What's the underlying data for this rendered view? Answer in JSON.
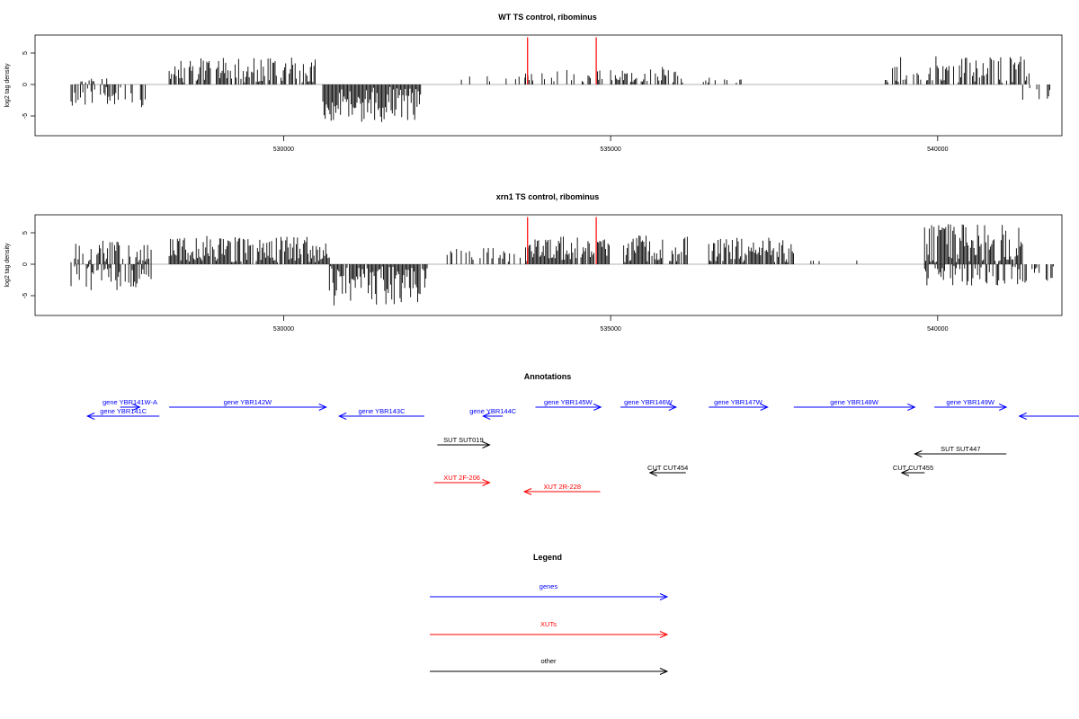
{
  "colors": {
    "genes": "#0000ff",
    "xuts": "#ff0000",
    "other": "#000000",
    "axis": "#000000",
    "baseline": "#b3b3b3",
    "highlight": "#ff0000"
  },
  "chart_data": [
    {
      "type": "bar",
      "title": "WT TS control, ribominus",
      "ylabel": "log2 tag density",
      "xlim": [
        526200,
        541900
      ],
      "ylim": [
        -8,
        8
      ],
      "xticks": [
        530000,
        535000,
        540000
      ],
      "xtick_labels": [
        "530000",
        "535000",
        "540000"
      ],
      "yticks": [
        5,
        0,
        -5
      ],
      "ytick_labels": [
        "5",
        "0",
        "-5"
      ],
      "highlight_positions": [
        533730,
        534780
      ],
      "highlight_value": 7.5,
      "segments": [
        {
          "start": 526750,
          "end": 527900,
          "mean": -2.0,
          "amp": 1.6,
          "density": 0.45,
          "seed": 11
        },
        {
          "start": 526900,
          "end": 527300,
          "mean": 0.6,
          "amp": 0.5,
          "density": 0.3,
          "seed": 12
        },
        {
          "start": 528250,
          "end": 530500,
          "mean": 2.3,
          "amp": 2.0,
          "density": 0.8,
          "seed": 13
        },
        {
          "start": 530600,
          "end": 532100,
          "mean": -3.0,
          "amp": 3.0,
          "density": 0.95,
          "seed": 14
        },
        {
          "start": 532700,
          "end": 533700,
          "mean": 1.2,
          "amp": 0.8,
          "density": 0.12,
          "seed": 15
        },
        {
          "start": 533700,
          "end": 534900,
          "mean": 1.2,
          "amp": 1.2,
          "density": 0.3,
          "seed": 16
        },
        {
          "start": 535000,
          "end": 536100,
          "mean": 1.3,
          "amp": 1.5,
          "density": 0.6,
          "seed": 17
        },
        {
          "start": 536400,
          "end": 537000,
          "mean": 0.6,
          "amp": 0.6,
          "density": 0.15,
          "seed": 18
        },
        {
          "start": 539200,
          "end": 541400,
          "mean": 2.0,
          "amp": 2.5,
          "density": 0.55,
          "seed": 19
        },
        {
          "start": 541300,
          "end": 541800,
          "mean": -1.2,
          "amp": 1.5,
          "density": 0.3,
          "seed": 20
        }
      ]
    },
    {
      "type": "bar",
      "title": "xrn1 TS control, ribominus",
      "ylabel": "log2 tag density",
      "xlim": [
        526200,
        541900
      ],
      "ylim": [
        -8,
        8
      ],
      "xticks": [
        530000,
        535000,
        540000
      ],
      "xtick_labels": [
        "530000",
        "535000",
        "540000"
      ],
      "yticks": [
        5,
        0,
        -5
      ],
      "ytick_labels": [
        "5",
        "0",
        "-5"
      ],
      "highlight_positions": [
        533730,
        534780
      ],
      "highlight_value": 7.5,
      "segments": [
        {
          "start": 526750,
          "end": 528000,
          "mean": 1.8,
          "amp": 2.0,
          "density": 0.55,
          "seed": 31
        },
        {
          "start": 526750,
          "end": 528000,
          "mean": -2.2,
          "amp": 2.0,
          "density": 0.55,
          "seed": 32
        },
        {
          "start": 528250,
          "end": 530700,
          "mean": 2.3,
          "amp": 2.2,
          "density": 0.9,
          "seed": 33
        },
        {
          "start": 530700,
          "end": 532200,
          "mean": -3.2,
          "amp": 3.5,
          "density": 0.98,
          "seed": 34
        },
        {
          "start": 532500,
          "end": 533700,
          "mean": 1.6,
          "amp": 1.2,
          "density": 0.45,
          "seed": 35
        },
        {
          "start": 533700,
          "end": 535000,
          "mean": 2.5,
          "amp": 2.0,
          "density": 0.9,
          "seed": 36
        },
        {
          "start": 535200,
          "end": 536200,
          "mean": 2.4,
          "amp": 2.2,
          "density": 0.85,
          "seed": 37
        },
        {
          "start": 536500,
          "end": 537800,
          "mean": 2.3,
          "amp": 2.0,
          "density": 0.85,
          "seed": 38
        },
        {
          "start": 537900,
          "end": 539300,
          "mean": 0.5,
          "amp": 0.4,
          "density": 0.06,
          "seed": 39
        },
        {
          "start": 539800,
          "end": 541300,
          "mean": 3.0,
          "amp": 3.5,
          "density": 0.95,
          "seed": 40
        },
        {
          "start": 539800,
          "end": 541300,
          "mean": -1.8,
          "amp": 1.6,
          "density": 0.5,
          "seed": 41
        },
        {
          "start": 541300,
          "end": 541800,
          "mean": -1.5,
          "amp": 1.5,
          "density": 0.45,
          "seed": 42
        }
      ]
    }
  ],
  "annotations": {
    "title": "Annotations",
    "items": [
      {
        "label": "gene YBR141W-A",
        "type": "genes",
        "start": 527500,
        "end": 527800,
        "dir": "+",
        "row": 0
      },
      {
        "label": "gene YBR141C",
        "type": "genes",
        "start": 527000,
        "end": 528100,
        "dir": "-",
        "row": 1
      },
      {
        "label": "gene YBR142W",
        "type": "genes",
        "start": 528250,
        "end": 530650,
        "dir": "+",
        "row": 0
      },
      {
        "label": "gene YBR143C",
        "type": "genes",
        "start": 530850,
        "end": 532150,
        "dir": "-",
        "row": 1
      },
      {
        "label": "gene YBR144C",
        "type": "genes",
        "start": 533050,
        "end": 533350,
        "dir": "-",
        "row": 1
      },
      {
        "label": "gene YBR145W",
        "type": "genes",
        "start": 533850,
        "end": 534850,
        "dir": "+",
        "row": 0
      },
      {
        "label": "gene YBR146W",
        "type": "genes",
        "start": 535150,
        "end": 536000,
        "dir": "+",
        "row": 0
      },
      {
        "label": "gene YBR147W",
        "type": "genes",
        "start": 536500,
        "end": 537400,
        "dir": "+",
        "row": 0
      },
      {
        "label": "gene YBR148W",
        "type": "genes",
        "start": 537800,
        "end": 539650,
        "dir": "+",
        "row": 0
      },
      {
        "label": "gene YBR149W",
        "type": "genes",
        "start": 539950,
        "end": 541050,
        "dir": "+",
        "row": 0
      },
      {
        "label": "",
        "type": "genes",
        "start": 541250,
        "end": 542500,
        "dir": "-",
        "row": 1
      },
      {
        "label": "SUT SUT019",
        "type": "other",
        "start": 532350,
        "end": 533150,
        "dir": "+",
        "row": 2
      },
      {
        "label": "SUT SUT447",
        "type": "other",
        "start": 539650,
        "end": 541050,
        "dir": "-",
        "row": 3
      },
      {
        "label": "CUT CUT454",
        "type": "other",
        "start": 535600,
        "end": 536150,
        "dir": "-",
        "row": 4
      },
      {
        "label": "CUT CUT455",
        "type": "other",
        "start": 539450,
        "end": 539800,
        "dir": "-",
        "row": 4
      },
      {
        "label": "XUT 2F-206",
        "type": "xuts",
        "start": 532300,
        "end": 533150,
        "dir": "+",
        "row": 5
      },
      {
        "label": "XUT 2R-228",
        "type": "xuts",
        "start": 533680,
        "end": 534840,
        "dir": "-",
        "row": 6
      }
    ]
  },
  "legend": {
    "title": "Legend",
    "entries": [
      {
        "label": "genes",
        "type": "genes"
      },
      {
        "label": "XUTs",
        "type": "xuts"
      },
      {
        "label": "other",
        "type": "other"
      }
    ]
  }
}
